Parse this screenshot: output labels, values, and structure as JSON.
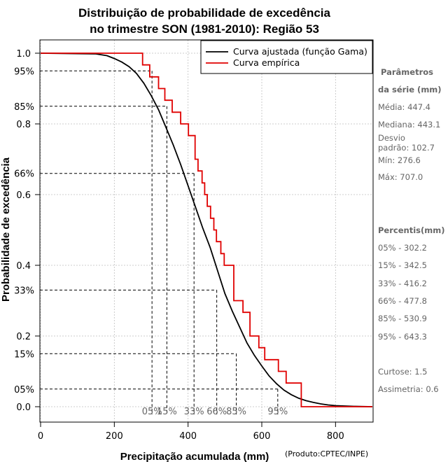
{
  "chart_data": {
    "type": "line",
    "title_line1": "Distribuição de probabilidade de excedência",
    "title_line2": "no trimestre SON (1981-2010): Região 53",
    "xlabel": "Precipitação acumulada (mm)",
    "ylabel": "Probabilidade de excedência",
    "credit": "(Produto:CPTEC/INPE)",
    "xlim": [
      0,
      900
    ],
    "ylim": [
      0,
      1
    ],
    "x_ticks": [
      0,
      200,
      400,
      600,
      800
    ],
    "x_tick_labels": [
      "0",
      "200",
      "400",
      "600",
      "800"
    ],
    "y_ticks": [
      0.0,
      0.2,
      0.4,
      0.6,
      0.8,
      1.0
    ],
    "y_tick_labels": [
      "0.0",
      "0.2",
      "0.4",
      "0.6",
      "0.8",
      "1.0"
    ],
    "grid": true,
    "legend": {
      "position": "top-right",
      "entries": [
        {
          "label": "Curva ajustada (função Gama)",
          "color": "#000000"
        },
        {
          "label": "Curva empírica",
          "color": "#e00000"
        }
      ]
    },
    "series": [
      {
        "name": "Curva ajustada (função Gama)",
        "color": "#000000",
        "x": [
          0,
          150,
          180,
          200,
          220,
          240,
          260,
          280,
          300,
          320,
          340,
          360,
          380,
          400,
          420,
          440,
          460,
          480,
          500,
          520,
          540,
          560,
          580,
          600,
          620,
          640,
          660,
          680,
          700,
          720,
          740,
          760,
          780,
          800,
          850,
          900
        ],
        "y": [
          1.0,
          0.998,
          0.993,
          0.985,
          0.975,
          0.962,
          0.943,
          0.915,
          0.88,
          0.84,
          0.79,
          0.74,
          0.685,
          0.625,
          0.565,
          0.505,
          0.45,
          0.385,
          0.32,
          0.27,
          0.225,
          0.18,
          0.145,
          0.115,
          0.087,
          0.065,
          0.047,
          0.034,
          0.024,
          0.017,
          0.012,
          0.008,
          0.005,
          0.003,
          0.001,
          0.0
        ]
      },
      {
        "name": "Curva empírica",
        "color": "#e00000",
        "step_x": [
          0,
          276.6,
          296,
          320,
          337,
          357,
          380,
          401,
          419,
          427,
          438,
          445,
          452,
          461,
          470,
          477,
          489,
          498,
          524,
          549,
          568,
          592,
          608,
          645,
          666,
          707,
          900
        ],
        "step_y": [
          1.0,
          0.967,
          0.933,
          0.9,
          0.867,
          0.833,
          0.8,
          0.767,
          0.7,
          0.667,
          0.633,
          0.6,
          0.567,
          0.533,
          0.5,
          0.467,
          0.433,
          0.4,
          0.3,
          0.267,
          0.2,
          0.167,
          0.133,
          0.1,
          0.067,
          0.0,
          0.0
        ]
      }
    ],
    "percentile_lines": [
      {
        "p": 0.95,
        "x": 302.2,
        "label": "95%",
        "bottom_label": "05%"
      },
      {
        "p": 0.85,
        "x": 342.5,
        "label": "85%",
        "bottom_label": "15%"
      },
      {
        "p": 0.66,
        "x": 416.2,
        "label": "66%",
        "bottom_label": "33%"
      },
      {
        "p": 0.33,
        "x": 477.8,
        "label": "33%",
        "bottom_label": "66%"
      },
      {
        "p": 0.15,
        "x": 530.9,
        "label": "15%",
        "bottom_label": "85%"
      },
      {
        "p": 0.05,
        "x": 643.3,
        "label": "05%",
        "bottom_label": "95%"
      }
    ]
  },
  "side_panel": {
    "params_head1": "Parâmetros",
    "params_head2": "da série (mm)",
    "media": "Média: 447.4",
    "mediana": "Mediana: 443.1",
    "desvio1": "Desvio",
    "desvio2": "padrão: 102.7",
    "min": "Mín: 276.6",
    "max": "Máx: 707.0",
    "percentis_head": "Percentis(mm)",
    "p05": "05% - 302.2",
    "p15": "15% - 342.5",
    "p33": "33% - 416.2",
    "p66": "66% - 477.8",
    "p85": "85% - 530.9",
    "p95": "95% - 643.3",
    "curtose": "Curtose: 1.5",
    "assimetria": "Assimetria: 0.6"
  }
}
